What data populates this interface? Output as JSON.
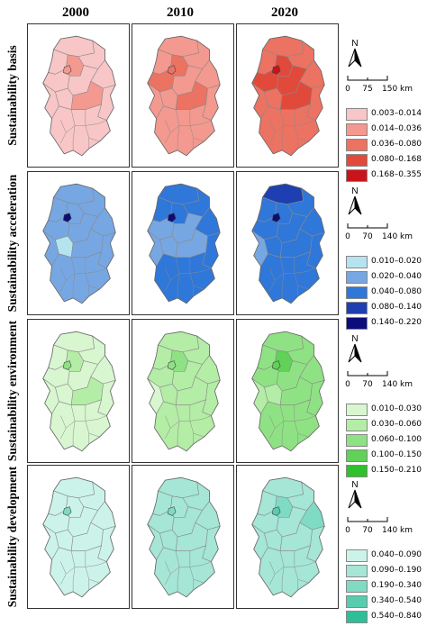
{
  "years": [
    "2000",
    "2010",
    "2020"
  ],
  "rows": [
    {
      "label": "Sustainability basis",
      "north": "N",
      "scale": {
        "ticks": [
          "0",
          "75",
          "150 km"
        ]
      },
      "classes": [
        {
          "label": "0.003–0.014",
          "color": "#f8c6c6"
        },
        {
          "label": "0.014–0.036",
          "color": "#f3998f"
        },
        {
          "label": "0.036–0.080",
          "color": "#ec7262"
        },
        {
          "label": "0.080–0.168",
          "color": "#e14a3b"
        },
        {
          "label": "0.168–0.355",
          "color": "#c9141a"
        }
      ],
      "map_classes": [
        [
          0,
          0,
          1,
          0,
          0,
          0,
          0,
          0,
          0,
          1,
          0,
          0,
          1
        ],
        [
          1,
          1,
          2,
          1,
          1,
          2,
          1,
          1,
          1,
          2,
          1,
          1,
          2
        ],
        [
          2,
          2,
          3,
          2,
          2,
          3,
          3,
          2,
          2,
          3,
          2,
          2,
          4
        ]
      ]
    },
    {
      "label": "Sustainability acceleration",
      "north": "N",
      "scale": {
        "ticks": [
          "0",
          "70",
          "140 km"
        ]
      },
      "classes": [
        {
          "label": "0.010–0.020",
          "color": "#b5e4f0"
        },
        {
          "label": "0.020–0.040",
          "color": "#77a7e2"
        },
        {
          "label": "0.040–0.080",
          "color": "#2f77d9"
        },
        {
          "label": "0.080–0.140",
          "color": "#1e3fb2"
        },
        {
          "label": "0.140–0.220",
          "color": "#0c0c7a"
        }
      ],
      "map_classes": [
        [
          1,
          1,
          1,
          1,
          1,
          1,
          1,
          1,
          0,
          1,
          1,
          1,
          4
        ],
        [
          2,
          2,
          2,
          2,
          2,
          1,
          1,
          1,
          1,
          1,
          2,
          2,
          4
        ],
        [
          3,
          2,
          2,
          2,
          2,
          2,
          2,
          1,
          2,
          2,
          2,
          2,
          4
        ]
      ]
    },
    {
      "label": "Sustainability environment",
      "north": "N",
      "scale": {
        "ticks": [
          "0",
          "70",
          "140 km"
        ]
      },
      "classes": [
        {
          "label": "0.010–0.030",
          "color": "#d8f6d0"
        },
        {
          "label": "0.030–0.060",
          "color": "#b4eda6"
        },
        {
          "label": "0.060–0.100",
          "color": "#8fe283"
        },
        {
          "label": "0.100–0.150",
          "color": "#5fd257"
        },
        {
          "label": "0.150–0.210",
          "color": "#2fc02c"
        }
      ],
      "map_classes": [
        [
          0,
          0,
          1,
          0,
          0,
          0,
          0,
          0,
          0,
          1,
          0,
          0,
          2
        ],
        [
          1,
          1,
          2,
          1,
          1,
          1,
          1,
          0,
          1,
          1,
          1,
          1,
          2
        ],
        [
          2,
          2,
          3,
          2,
          2,
          2,
          2,
          1,
          1,
          2,
          2,
          2,
          3
        ]
      ]
    },
    {
      "label": "Sustainability development",
      "north": "N",
      "scale": {
        "ticks": [
          "0",
          "70",
          "140 km"
        ]
      },
      "classes": [
        {
          "label": "0.040–0.090",
          "color": "#ccf3ea"
        },
        {
          "label": "0.090–0.190",
          "color": "#a5e6d6"
        },
        {
          "label": "0.190–0.340",
          "color": "#7fdbc3"
        },
        {
          "label": "0.340–0.540",
          "color": "#57cdae"
        },
        {
          "label": "0.540–0.840",
          "color": "#2fbf98"
        }
      ],
      "map_classes": [
        [
          0,
          0,
          0,
          0,
          0,
          0,
          0,
          0,
          0,
          0,
          0,
          0,
          2
        ],
        [
          1,
          1,
          1,
          1,
          1,
          1,
          1,
          1,
          1,
          1,
          1,
          1,
          2
        ],
        [
          1,
          1,
          2,
          1,
          2,
          1,
          1,
          1,
          1,
          1,
          1,
          1,
          3
        ]
      ]
    }
  ]
}
